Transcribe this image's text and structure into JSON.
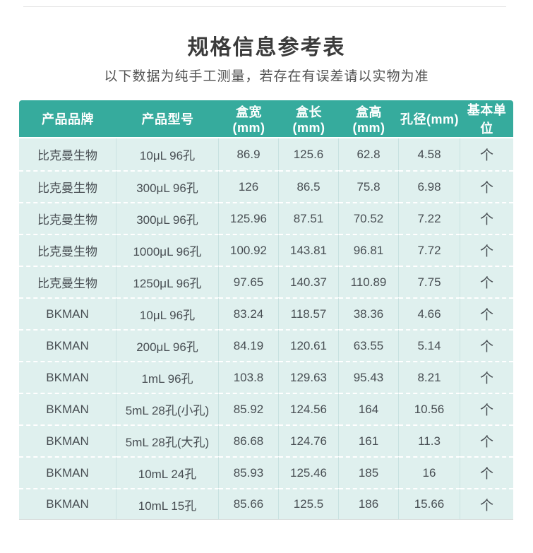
{
  "header": {
    "title": "规格信息参考表",
    "subtitle": "以下数据为纯手工测量，若存在有误差请以实物为准"
  },
  "table": {
    "columns": [
      "产品品牌",
      "产品型号",
      "盒宽(mm)",
      "盒长(mm)",
      "盒高(mm)",
      "孔径(mm)",
      "基本单位"
    ],
    "rows": [
      [
        "比克曼生物",
        "10μL 96孔",
        "86.9",
        "125.6",
        "62.8",
        "4.58",
        "个"
      ],
      [
        "比克曼生物",
        "300μL 96孔",
        "126",
        "86.5",
        "75.8",
        "6.98",
        "个"
      ],
      [
        "比克曼生物",
        "300μL 96孔",
        "125.96",
        "87.51",
        "70.52",
        "7.22",
        "个"
      ],
      [
        "比克曼生物",
        "1000μL 96孔",
        "100.92",
        "143.81",
        "96.81",
        "7.72",
        "个"
      ],
      [
        "比克曼生物",
        "1250μL 96孔",
        "97.65",
        "140.37",
        "110.89",
        "7.75",
        "个"
      ],
      [
        "BKMAN",
        "10μL 96孔",
        "83.24",
        "118.57",
        "38.36",
        "4.66",
        "个"
      ],
      [
        "BKMAN",
        "200μL 96孔",
        "84.19",
        "120.61",
        "63.55",
        "5.14",
        "个"
      ],
      [
        "BKMAN",
        "1mL 96孔",
        "103.8",
        "129.63",
        "95.43",
        "8.21",
        "个"
      ],
      [
        "BKMAN",
        "5mL 28孔(小孔)",
        "85.92",
        "124.56",
        "164",
        "10.56",
        "个"
      ],
      [
        "BKMAN",
        "5mL 28孔(大孔)",
        "86.68",
        "124.76",
        "161",
        "11.3",
        "个"
      ],
      [
        "BKMAN",
        "10mL 24孔",
        "85.93",
        "125.46",
        "185",
        "16",
        "个"
      ],
      [
        "BKMAN",
        "10mL 15孔",
        "85.66",
        "125.5",
        "186",
        "15.66",
        "个"
      ]
    ]
  },
  "colors": {
    "header_bg": "#36ab9d",
    "row_bg": "#dff0ee",
    "header_text": "#ffffff",
    "cell_text": "#484e53"
  }
}
